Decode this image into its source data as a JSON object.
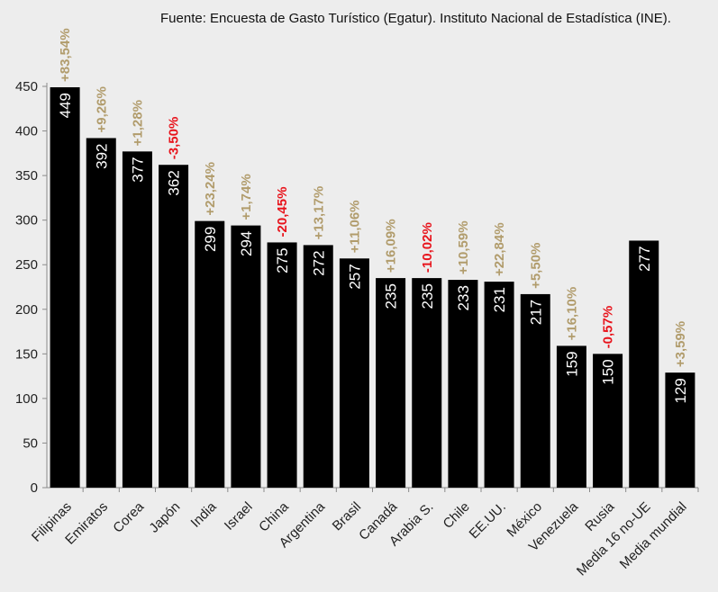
{
  "source_note": "Fuente: Encuesta de Gasto Turístico (Egatur). Instituto Nacional de Estadística (INE).",
  "colors": {
    "background": "#ededed",
    "bar": "#000000",
    "bar_label": "#ffffff",
    "change_positive": "#b19c6c",
    "change_negative": "#e8141c",
    "axis": "#8a8a8a",
    "tick_text": "#222222"
  },
  "chart_data": {
    "type": "bar",
    "title": "",
    "xlabel": "",
    "ylabel": "",
    "ylim": [
      0,
      450
    ],
    "yticks": [
      0,
      50,
      100,
      150,
      200,
      250,
      300,
      350,
      400,
      450
    ],
    "grid": false,
    "categories": [
      "Filipinas",
      "Emiratos",
      "Corea",
      "Japón",
      "India",
      "Israel",
      "China",
      "Argentina",
      "Brasil",
      "Canadá",
      "Arabia S.",
      "Chile",
      "EE.UU.",
      "México",
      "Venezuela",
      "Rusia",
      "Media 16 no-UE",
      "Media mundial"
    ],
    "values": [
      449,
      392,
      377,
      362,
      299,
      294,
      275,
      272,
      257,
      235,
      235,
      233,
      231,
      217,
      159,
      150,
      277,
      129
    ],
    "changes": [
      "+83,54%",
      "+9,26%",
      "+1,28%",
      "-3,50%",
      "+23,24%",
      "+1,74%",
      "-20,45%",
      "+13,17%",
      "+11,06%",
      "+16,09%",
      "-10,02%",
      "+10,59%",
      "+22,84%",
      "+5,50%",
      "+16,10%",
      "-0,57%",
      "",
      "+3,59%"
    ]
  }
}
